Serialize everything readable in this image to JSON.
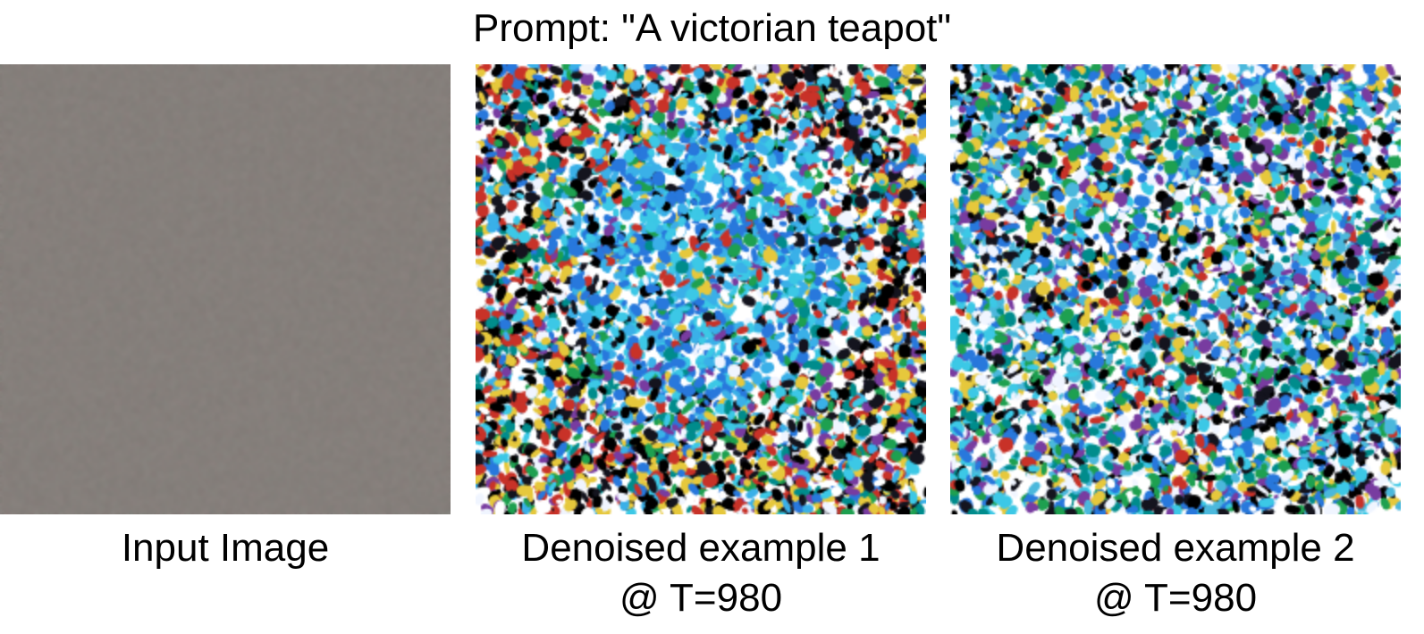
{
  "title": "Prompt: \"A victorian teapot\"",
  "panels": [
    {
      "caption_line1": "Input Image",
      "caption_line2": "",
      "style": "gray-noise",
      "base_color": "#857f7b"
    },
    {
      "caption_line1": "Denoised example 1",
      "caption_line2": "@ T=980",
      "style": "color-noise-centered",
      "accent_color": "#3ab0e8"
    },
    {
      "caption_line1": "Denoised example 2",
      "caption_line2": "@ T=980",
      "style": "color-noise-uniform",
      "accent_color": "#4bb8dc"
    }
  ]
}
